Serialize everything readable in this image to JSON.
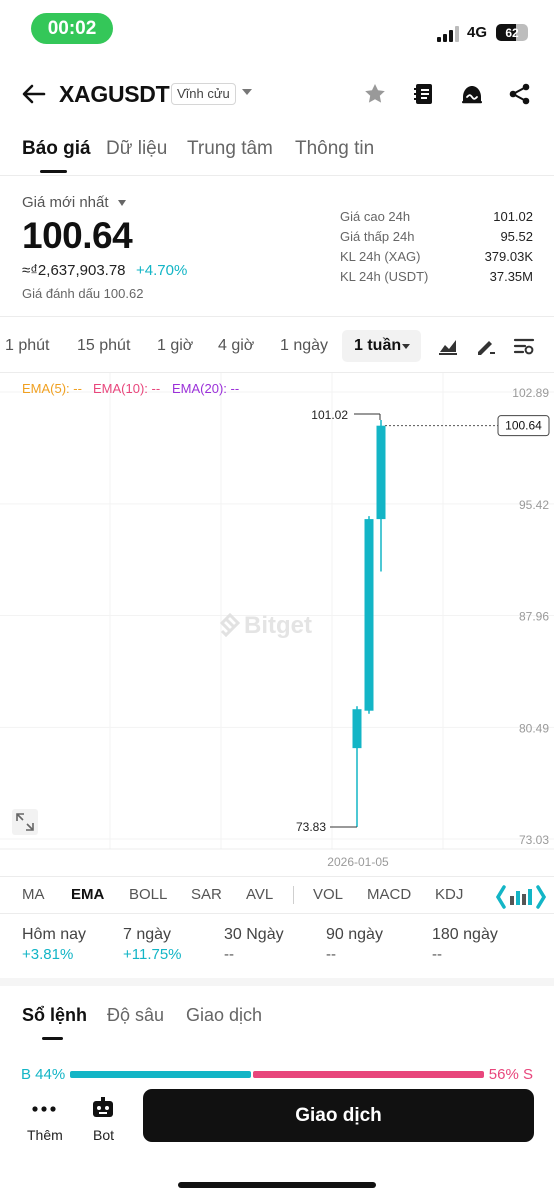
{
  "status_bar": {
    "time": "00:02",
    "network": "4G",
    "battery": "62",
    "battery_level": 0.62
  },
  "header": {
    "symbol": "XAGUSDT",
    "contract_type": "Vĩnh cửu"
  },
  "main_tabs": [
    {
      "label": "Báo giá",
      "active": true
    },
    {
      "label": "Dữ liệu",
      "active": false
    },
    {
      "label": "Trung tâm",
      "active": false
    },
    {
      "label": "Thông tin",
      "active": false
    }
  ],
  "price": {
    "latest_label": "Giá mới nhất",
    "last": "100.64",
    "approx_fiat": "≈₫2,637,903.78",
    "change_pct": "+4.70%",
    "mark_price": "Giá đánh dấu 100.62"
  },
  "stats": [
    {
      "label": "Giá cao 24h",
      "value": "101.02"
    },
    {
      "label": "Giá thấp 24h",
      "value": "95.52"
    },
    {
      "label": "KL 24h (XAG)",
      "value": "379.03K"
    },
    {
      "label": "KL 24h (USDT)",
      "value": "37.35M"
    }
  ],
  "timeframes": [
    {
      "label": "1 phút"
    },
    {
      "label": "15 phút"
    },
    {
      "label": "1 giờ"
    },
    {
      "label": "4 giờ"
    },
    {
      "label": "1 ngày"
    }
  ],
  "active_timeframe": "1 tuần",
  "ema_legend": [
    {
      "label": "EMA(5): --",
      "color": "#f0a020"
    },
    {
      "label": "EMA(10): --",
      "color": "#e8467c"
    },
    {
      "label": "EMA(20): --",
      "color": "#9b30d9"
    }
  ],
  "watermark": "Bitget",
  "chart_data": {
    "type": "candlestick",
    "y_ticks": [
      "102.89",
      "95.42",
      "87.96",
      "80.49",
      "73.03"
    ],
    "ylim": [
      73.03,
      102.89
    ],
    "x_tick_label": "2026-01-05",
    "last_price_label": "100.64",
    "high_label": "101.02",
    "low_label": "73.83",
    "colors": {
      "up": "#13b5c6",
      "down": "#e8467c"
    },
    "candles": [
      {
        "open": 79.1,
        "close": 81.7,
        "high": 81.9,
        "low": 73.83
      },
      {
        "open": 81.6,
        "close": 94.4,
        "high": 94.6,
        "low": 81.4
      },
      {
        "open": 94.4,
        "close": 100.64,
        "high": 101.02,
        "low": 90.9
      }
    ]
  },
  "indicators": [
    {
      "label": "MA",
      "active": false
    },
    {
      "label": "EMA",
      "active": true
    },
    {
      "label": "BOLL",
      "active": false
    },
    {
      "label": "SAR",
      "active": false
    },
    {
      "label": "AVL",
      "active": false
    },
    {
      "label": "VOL",
      "active": false
    },
    {
      "label": "MACD",
      "active": false
    },
    {
      "label": "KDJ",
      "active": false
    }
  ],
  "performance": [
    {
      "label": "Hôm nay",
      "value": "+3.81%"
    },
    {
      "label": "7 ngày",
      "value": "+11.75%"
    },
    {
      "label": "30 Ngày",
      "value": "--"
    },
    {
      "label": "90 ngày",
      "value": "--"
    },
    {
      "label": "180 ngày",
      "value": "--"
    }
  ],
  "orderbook_tabs": [
    {
      "label": "Sổ lệnh",
      "active": true
    },
    {
      "label": "Độ sâu",
      "active": false
    },
    {
      "label": "Giao dịch",
      "active": false
    }
  ],
  "ratio": {
    "buy_label": "B 44%",
    "sell_label": "56% S",
    "buy_pct": 44,
    "sell_pct": 56
  },
  "bottom": {
    "more_label": "Thêm",
    "bot_label": "Bot",
    "trade_label": "Giao dịch"
  }
}
